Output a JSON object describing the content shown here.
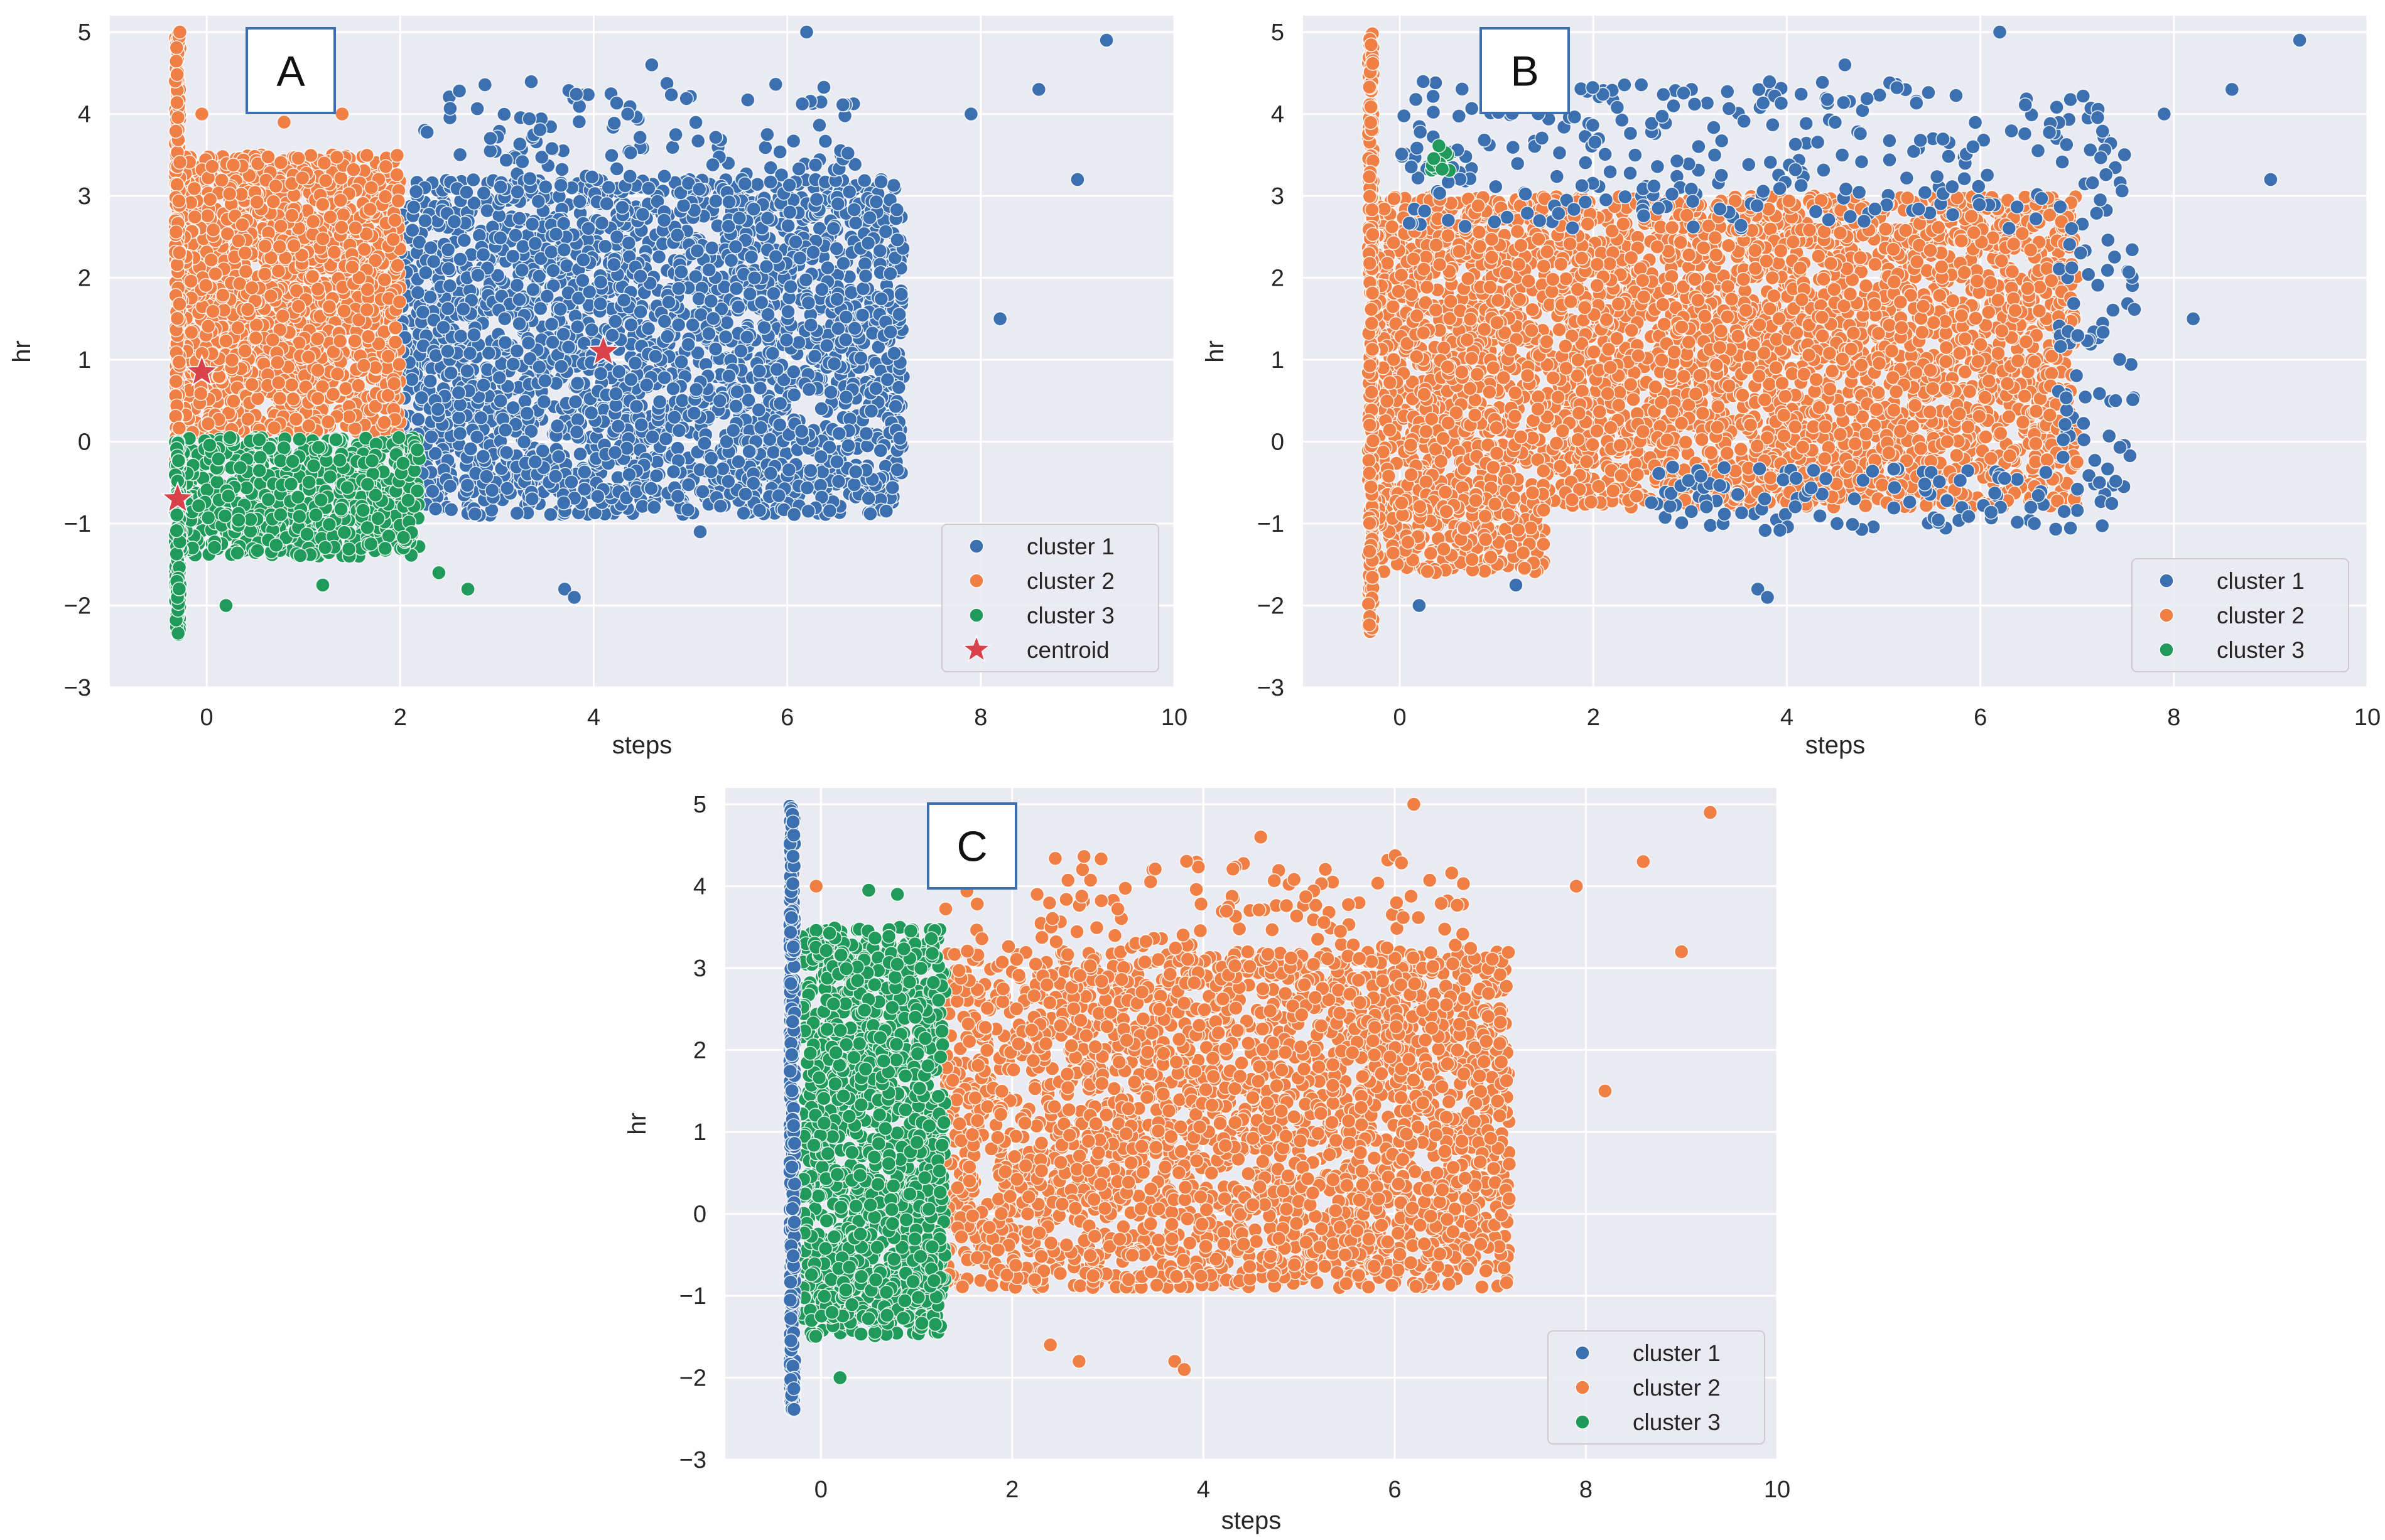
{
  "colors": {
    "cluster_1": "#3b6fb0",
    "cluster_2": "#f07f45",
    "cluster_3": "#1f9a5a",
    "centroid": "#d9424a",
    "panel_bg": "#eaeaf2",
    "grid": "#ffffff",
    "tag_border": "#3b6fb0"
  },
  "chart_data": [
    {
      "type": "scatter",
      "panel": "A",
      "xlabel": "steps",
      "ylabel": "hr",
      "xlim": [
        -1,
        10
      ],
      "ylim": [
        -3,
        5.2
      ],
      "xticks": [
        0,
        2,
        4,
        6,
        8,
        10
      ],
      "yticks": [
        -3,
        -2,
        -1,
        0,
        1,
        2,
        3,
        4,
        5
      ],
      "grid": true,
      "legend_position": "bottom-right",
      "legend": [
        "cluster 1",
        "cluster 2",
        "cluster 3",
        "centroid"
      ],
      "series": [
        {
          "name": "cluster 1",
          "color_key": "cluster_1",
          "regions": [
            {
              "x": [
                2.0,
                7.2
              ],
              "y": [
                -0.9,
                3.2
              ],
              "n": 2600
            },
            {
              "x": [
                2.2,
                6.8
              ],
              "y": [
                3.0,
                4.4
              ],
              "n": 130
            }
          ],
          "outliers": [
            [
              4.6,
              4.6
            ],
            [
              6.2,
              5.0
            ],
            [
              9.3,
              4.9
            ],
            [
              8.6,
              4.3
            ],
            [
              7.9,
              4.0
            ],
            [
              9.0,
              3.2
            ],
            [
              8.2,
              1.5
            ],
            [
              3.7,
              -1.8
            ],
            [
              3.8,
              -1.9
            ],
            [
              5.1,
              -1.1
            ]
          ]
        },
        {
          "name": "cluster 2",
          "color_key": "cluster_2",
          "regions": [
            {
              "x": [
                -0.3,
                2.0
              ],
              "y": [
                0.1,
                3.5
              ],
              "n": 1700
            },
            {
              "x": [
                -0.3,
                -0.3
              ],
              "y": [
                -0.3,
                5.0
              ],
              "n": 160
            }
          ],
          "outliers": [
            [
              -0.05,
              4.0
            ],
            [
              1.4,
              4.0
            ],
            [
              0.8,
              3.9
            ]
          ]
        },
        {
          "name": "cluster 3",
          "color_key": "cluster_3",
          "regions": [
            {
              "x": [
                -0.3,
                2.2
              ],
              "y": [
                -1.4,
                0.05
              ],
              "n": 700
            },
            {
              "x": [
                -0.3,
                -0.3
              ],
              "y": [
                -2.4,
                0.0
              ],
              "n": 100
            }
          ],
          "outliers": [
            [
              0.2,
              -2.0
            ],
            [
              1.2,
              -1.75
            ],
            [
              2.4,
              -1.6
            ],
            [
              2.7,
              -1.8
            ]
          ]
        },
        {
          "name": "centroid",
          "color_key": "centroid",
          "marker": "star",
          "points": [
            [
              -0.05,
              0.85
            ],
            [
              4.1,
              1.1
            ],
            [
              -0.3,
              -0.7
            ]
          ]
        }
      ]
    },
    {
      "type": "scatter",
      "panel": "B",
      "xlabel": "steps",
      "ylabel": "hr",
      "xlim": [
        -1,
        10
      ],
      "ylim": [
        -3,
        5.2
      ],
      "xticks": [
        0,
        2,
        4,
        6,
        8,
        10
      ],
      "yticks": [
        -3,
        -2,
        -1,
        0,
        1,
        2,
        3,
        4,
        5
      ],
      "grid": true,
      "legend_position": "bottom-right",
      "legend": [
        "cluster 1",
        "cluster 2",
        "cluster 3"
      ],
      "series": [
        {
          "name": "cluster 1",
          "color_key": "cluster_1",
          "regions": [
            {
              "x": [
                0.0,
                7.5
              ],
              "y": [
                2.6,
                4.4
              ],
              "n": 300
            },
            {
              "x": [
                2.5,
                7.5
              ],
              "y": [
                -1.1,
                -0.3
              ],
              "n": 120
            },
            {
              "x": [
                6.8,
                7.6
              ],
              "y": [
                -0.4,
                2.5
              ],
              "n": 60
            }
          ],
          "outliers": [
            [
              4.6,
              4.6
            ],
            [
              6.2,
              5.0
            ],
            [
              9.3,
              4.9
            ],
            [
              8.6,
              4.3
            ],
            [
              7.9,
              4.0
            ],
            [
              9.0,
              3.2
            ],
            [
              8.2,
              1.5
            ],
            [
              3.7,
              -1.8
            ],
            [
              3.8,
              -1.9
            ],
            [
              0.2,
              -2.0
            ],
            [
              1.2,
              -1.75
            ]
          ]
        },
        {
          "name": "cluster 2",
          "color_key": "cluster_2",
          "regions": [
            {
              "x": [
                -0.3,
                7.0
              ],
              "y": [
                -0.8,
                3.0
              ],
              "n": 3800
            },
            {
              "x": [
                -0.3,
                1.5
              ],
              "y": [
                -1.6,
                -0.6
              ],
              "n": 250
            },
            {
              "x": [
                -0.3,
                -0.3
              ],
              "y": [
                -2.4,
                5.0
              ],
              "n": 220
            }
          ],
          "outliers": []
        },
        {
          "name": "cluster 3",
          "color_key": "cluster_3",
          "regions": [
            {
              "x": [
                0.3,
                0.55
              ],
              "y": [
                3.3,
                3.65
              ],
              "n": 14
            }
          ],
          "outliers": []
        }
      ]
    },
    {
      "type": "scatter",
      "panel": "C",
      "xlabel": "steps",
      "ylabel": "hr",
      "xlim": [
        -1,
        10
      ],
      "ylim": [
        -3,
        5.2
      ],
      "xticks": [
        0,
        2,
        4,
        6,
        8,
        10
      ],
      "yticks": [
        -3,
        -2,
        -1,
        0,
        1,
        2,
        3,
        4,
        5
      ],
      "grid": true,
      "legend_position": "bottom-right",
      "legend": [
        "cluster 1",
        "cluster 2",
        "cluster 3"
      ],
      "series": [
        {
          "name": "cluster 1",
          "color_key": "cluster_1",
          "regions": [
            {
              "x": [
                -0.3,
                -0.3
              ],
              "y": [
                -2.4,
                5.0
              ],
              "n": 320
            }
          ],
          "outliers": []
        },
        {
          "name": "cluster 2",
          "color_key": "cluster_2",
          "regions": [
            {
              "x": [
                1.3,
                7.2
              ],
              "y": [
                -0.9,
                3.2
              ],
              "n": 2600
            },
            {
              "x": [
                1.3,
                6.8
              ],
              "y": [
                3.0,
                4.4
              ],
              "n": 130
            }
          ],
          "outliers": [
            [
              4.6,
              4.6
            ],
            [
              6.2,
              5.0
            ],
            [
              9.3,
              4.9
            ],
            [
              8.6,
              4.3
            ],
            [
              7.9,
              4.0
            ],
            [
              9.0,
              3.2
            ],
            [
              8.2,
              1.5
            ],
            [
              3.7,
              -1.8
            ],
            [
              3.8,
              -1.9
            ],
            [
              2.4,
              -1.6
            ],
            [
              2.7,
              -1.8
            ],
            [
              -0.05,
              4.0
            ]
          ]
        },
        {
          "name": "cluster 3",
          "color_key": "cluster_3",
          "regions": [
            {
              "x": [
                -0.2,
                1.3
              ],
              "y": [
                -1.5,
                3.5
              ],
              "n": 1300
            }
          ],
          "outliers": [
            [
              0.2,
              -2.0
            ],
            [
              0.5,
              3.95
            ],
            [
              0.8,
              3.9
            ]
          ]
        }
      ]
    }
  ]
}
